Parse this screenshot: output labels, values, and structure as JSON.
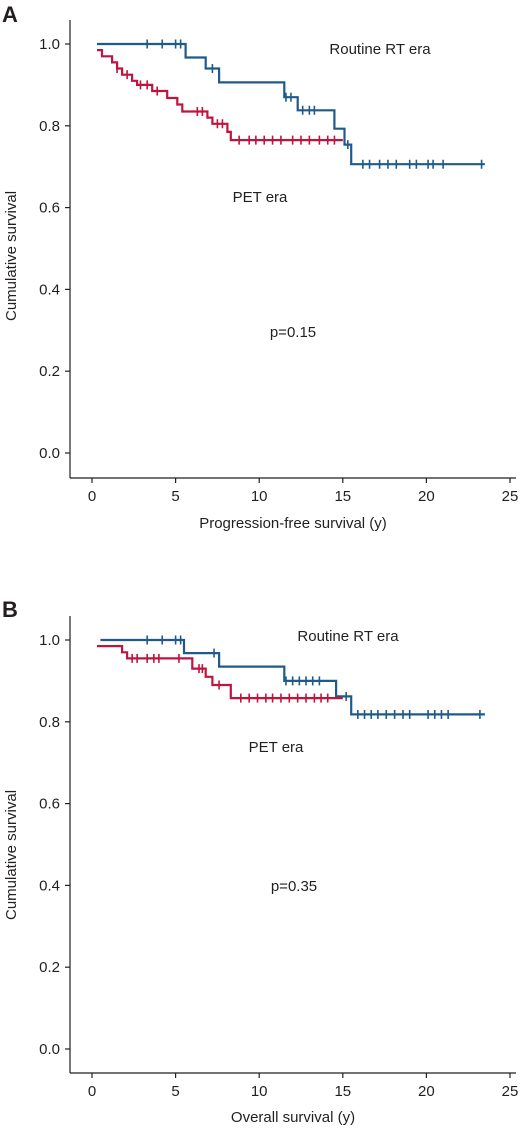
{
  "chart_data": [
    {
      "type": "line",
      "panel_label": "A",
      "xlabel": "Progression-free survival (y)",
      "ylabel": "Cumulative survival",
      "xlim": [
        0,
        25
      ],
      "ylim": [
        0,
        1
      ],
      "x_ticks": [
        "0",
        "5",
        "10",
        "15",
        "20",
        "25"
      ],
      "y_ticks": [
        "0.0",
        "0.2",
        "0.4",
        "0.6",
        "0.8",
        "1.0"
      ],
      "annotations": {
        "routine_label": "Routine RT era",
        "pet_label": "PET era",
        "p_value": "p=0.15"
      },
      "series": [
        {
          "key": "routine",
          "color": "#1f5a8c",
          "steps": [
            [
              0.3,
              1.0
            ],
            [
              5.6,
              0.967
            ],
            [
              6.8,
              0.94
            ],
            [
              7.6,
              0.906
            ],
            [
              11.5,
              0.87
            ],
            [
              12.3,
              0.838
            ],
            [
              14.5,
              0.793
            ],
            [
              15.1,
              0.754
            ],
            [
              15.5,
              0.706
            ],
            [
              23.5,
              0.706
            ]
          ],
          "censored": [
            [
              3.3,
              1.0
            ],
            [
              4.2,
              1.0
            ],
            [
              5.0,
              1.0
            ],
            [
              5.3,
              1.0
            ],
            [
              7.2,
              0.94
            ],
            [
              11.6,
              0.87
            ],
            [
              11.9,
              0.87
            ],
            [
              12.6,
              0.838
            ],
            [
              13.0,
              0.838
            ],
            [
              13.3,
              0.838
            ],
            [
              15.3,
              0.754
            ],
            [
              16.2,
              0.706
            ],
            [
              16.6,
              0.706
            ],
            [
              17.2,
              0.706
            ],
            [
              17.7,
              0.706
            ],
            [
              18.2,
              0.706
            ],
            [
              19.0,
              0.706
            ],
            [
              19.4,
              0.706
            ],
            [
              20.1,
              0.706
            ],
            [
              20.4,
              0.706
            ],
            [
              21.0,
              0.706
            ],
            [
              23.3,
              0.706
            ]
          ]
        },
        {
          "key": "pet",
          "color": "#c0143c",
          "steps": [
            [
              0.3,
              0.985
            ],
            [
              0.6,
              0.97
            ],
            [
              1.2,
              0.955
            ],
            [
              1.5,
              0.94
            ],
            [
              1.8,
              0.925
            ],
            [
              2.4,
              0.91
            ],
            [
              2.7,
              0.9
            ],
            [
              3.6,
              0.885
            ],
            [
              4.5,
              0.868
            ],
            [
              5.1,
              0.852
            ],
            [
              5.4,
              0.835
            ],
            [
              6.9,
              0.82
            ],
            [
              7.2,
              0.805
            ],
            [
              8.1,
              0.785
            ],
            [
              8.3,
              0.765
            ],
            [
              15.0,
              0.765
            ]
          ],
          "censored": [
            [
              1.5,
              0.94
            ],
            [
              2.1,
              0.925
            ],
            [
              2.9,
              0.9
            ],
            [
              3.3,
              0.9
            ],
            [
              3.9,
              0.885
            ],
            [
              6.3,
              0.835
            ],
            [
              6.6,
              0.835
            ],
            [
              7.5,
              0.805
            ],
            [
              7.8,
              0.805
            ],
            [
              8.8,
              0.765
            ],
            [
              9.4,
              0.765
            ],
            [
              9.8,
              0.765
            ],
            [
              10.3,
              0.765
            ],
            [
              10.8,
              0.765
            ],
            [
              11.3,
              0.765
            ],
            [
              12.0,
              0.765
            ],
            [
              12.5,
              0.765
            ],
            [
              13.0,
              0.765
            ],
            [
              13.6,
              0.765
            ],
            [
              14.1,
              0.765
            ],
            [
              14.5,
              0.765
            ]
          ]
        }
      ]
    },
    {
      "type": "line",
      "panel_label": "B",
      "xlabel": "Overall survival (y)",
      "ylabel": "Cumulative survival",
      "xlim": [
        0,
        25
      ],
      "ylim": [
        0,
        1
      ],
      "x_ticks": [
        "0",
        "5",
        "10",
        "15",
        "20",
        "25"
      ],
      "y_ticks": [
        "0.0",
        "0.2",
        "0.4",
        "0.6",
        "0.8",
        "1.0"
      ],
      "annotations": {
        "routine_label": "Routine RT era",
        "pet_label": "PET era",
        "p_value": "p=0.35"
      },
      "series": [
        {
          "key": "routine",
          "color": "#1f5a8c",
          "steps": [
            [
              0.5,
              1.0
            ],
            [
              5.5,
              0.968
            ],
            [
              7.6,
              0.935
            ],
            [
              11.5,
              0.9
            ],
            [
              14.6,
              0.862
            ],
            [
              15.5,
              0.818
            ],
            [
              23.5,
              0.818
            ]
          ],
          "censored": [
            [
              3.3,
              1.0
            ],
            [
              4.2,
              1.0
            ],
            [
              5.0,
              1.0
            ],
            [
              5.3,
              1.0
            ],
            [
              7.3,
              0.968
            ],
            [
              11.6,
              0.9
            ],
            [
              12.0,
              0.9
            ],
            [
              12.4,
              0.9
            ],
            [
              12.8,
              0.9
            ],
            [
              13.2,
              0.9
            ],
            [
              13.6,
              0.9
            ],
            [
              15.2,
              0.862
            ],
            [
              15.9,
              0.818
            ],
            [
              16.3,
              0.818
            ],
            [
              16.7,
              0.818
            ],
            [
              17.1,
              0.818
            ],
            [
              17.6,
              0.818
            ],
            [
              18.1,
              0.818
            ],
            [
              18.6,
              0.818
            ],
            [
              19.0,
              0.818
            ],
            [
              20.1,
              0.818
            ],
            [
              20.5,
              0.818
            ],
            [
              20.9,
              0.818
            ],
            [
              21.3,
              0.818
            ],
            [
              23.2,
              0.818
            ]
          ]
        },
        {
          "key": "pet",
          "color": "#c0143c",
          "steps": [
            [
              0.3,
              0.985
            ],
            [
              1.8,
              0.97
            ],
            [
              2.1,
              0.955
            ],
            [
              6.0,
              0.93
            ],
            [
              6.8,
              0.91
            ],
            [
              7.2,
              0.89
            ],
            [
              8.3,
              0.858
            ],
            [
              15.0,
              0.858
            ]
          ],
          "censored": [
            [
              2.4,
              0.955
            ],
            [
              2.7,
              0.955
            ],
            [
              3.3,
              0.955
            ],
            [
              3.7,
              0.955
            ],
            [
              4.0,
              0.955
            ],
            [
              5.2,
              0.955
            ],
            [
              6.4,
              0.93
            ],
            [
              6.6,
              0.93
            ],
            [
              7.6,
              0.89
            ],
            [
              8.9,
              0.858
            ],
            [
              9.4,
              0.858
            ],
            [
              9.9,
              0.858
            ],
            [
              10.4,
              0.858
            ],
            [
              10.8,
              0.858
            ],
            [
              11.3,
              0.858
            ],
            [
              11.8,
              0.858
            ],
            [
              12.3,
              0.858
            ],
            [
              12.8,
              0.858
            ],
            [
              13.3,
              0.858
            ],
            [
              13.7,
              0.858
            ],
            [
              14.1,
              0.858
            ]
          ]
        }
      ]
    }
  ]
}
